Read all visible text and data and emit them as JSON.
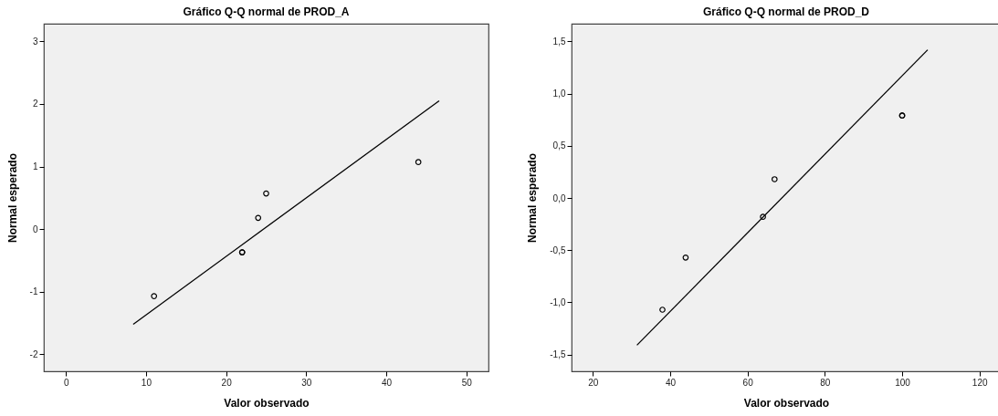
{
  "chart_data": [
    {
      "type": "scatter",
      "title": "Gráfico Q-Q normal de PROD_A",
      "xlabel": "Valor observado",
      "ylabel": "Normal esperado",
      "grid": false,
      "xlim": [
        -2.76,
        52.76
      ],
      "xticks": [
        0,
        10,
        20,
        30,
        40,
        50
      ],
      "ylim": [
        -2.27,
        3.28
      ],
      "yticks": [
        -2,
        -1,
        0,
        1,
        2,
        3
      ],
      "series": [
        {
          "marker": "circle",
          "color": "#000000",
          "x": [
            11,
            22,
            22,
            24,
            25,
            44
          ],
          "values": [
            -1.07,
            -0.37,
            -0.37,
            0.18,
            0.57,
            1.07
          ]
        },
        {
          "type": "line",
          "color": "#000000",
          "x": [
            8.4,
            46.6
          ],
          "values": [
            -1.52,
            2.05
          ]
        }
      ]
    },
    {
      "type": "scatter",
      "title": "Gráfico Q-Q normal de PROD_D",
      "xlabel": "Valor observado",
      "ylabel": "Normal esperado",
      "grid": false,
      "xlim": [
        14.5,
        125.5
      ],
      "xticks": [
        20,
        40,
        60,
        80,
        100,
        120
      ],
      "ylim": [
        -1.66,
        1.67
      ],
      "yticks": [
        {
          "value": -1.5,
          "label": "-1,5"
        },
        {
          "value": -1.0,
          "label": "-1,0"
        },
        {
          "value": -0.5,
          "label": "-0,5"
        },
        {
          "value": 0,
          "label": "0,0"
        },
        {
          "value": 0.5,
          "label": "0,5"
        },
        {
          "value": 1.0,
          "label": "1,0"
        },
        {
          "value": 1.5,
          "label": "1,5"
        }
      ],
      "series": [
        {
          "marker": "circle",
          "color": "#000000",
          "x": [
            38,
            44,
            64,
            67,
            100,
            100
          ],
          "values": [
            -1.07,
            -0.57,
            -0.18,
            0.18,
            0.79,
            0.79
          ]
        },
        {
          "type": "line",
          "color": "#000000",
          "x": [
            31.4,
            106.6
          ],
          "values": [
            -1.41,
            1.42
          ]
        }
      ]
    }
  ]
}
